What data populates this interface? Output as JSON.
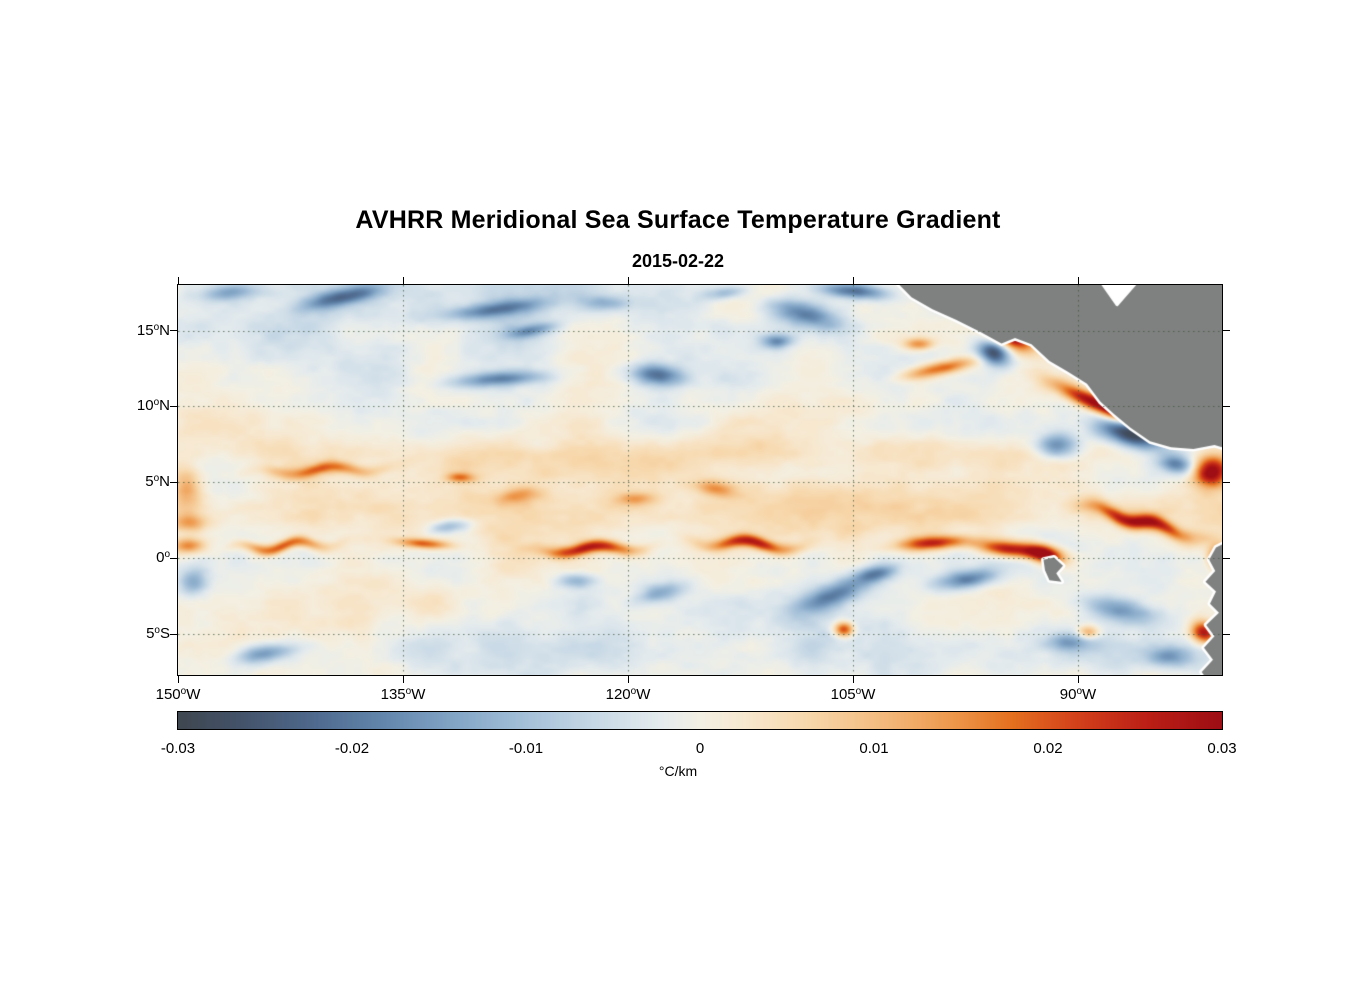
{
  "title": "AVHRR Meridional Sea Surface Temperature Gradient",
  "subtitle": "2015-02-22",
  "chart_data": {
    "type": "heatmap",
    "title": "AVHRR Meridional Sea Surface Temperature Gradient",
    "date": "2015-02-22",
    "units": "°C/km",
    "lon_range": [
      -150,
      -80.4
    ],
    "lat_range": [
      -7.7,
      18.0
    ],
    "grid": "dotted",
    "x_ticks": [
      {
        "num": "150",
        "hem": "W",
        "lon": -150
      },
      {
        "num": "135",
        "hem": "W",
        "lon": -135
      },
      {
        "num": "120",
        "hem": "W",
        "lon": -120
      },
      {
        "num": "105",
        "hem": "W",
        "lon": -105
      },
      {
        "num": "90",
        "hem": "W",
        "lon": -90
      }
    ],
    "y_ticks": [
      {
        "num": "15",
        "hem": "N",
        "lat": 15
      },
      {
        "num": "10",
        "hem": "N",
        "lat": 10
      },
      {
        "num": "5",
        "hem": "N",
        "lat": 5
      },
      {
        "num": "0",
        "hem": "",
        "lat": 0
      },
      {
        "num": "5",
        "hem": "S",
        "lat": -5
      }
    ],
    "colorbar": {
      "min": -0.03,
      "max": 0.03,
      "tick_labels": [
        "-0.03",
        "-0.02",
        "-0.01",
        "0",
        "0.01",
        "0.02",
        "0.03"
      ],
      "label": "°C/km",
      "stops": [
        [
          0.0,
          "#3f4750"
        ],
        [
          0.06,
          "#44536a"
        ],
        [
          0.13,
          "#4f6a8e"
        ],
        [
          0.2,
          "#6488ae"
        ],
        [
          0.27,
          "#86a8c8"
        ],
        [
          0.33,
          "#a3bfd8"
        ],
        [
          0.4,
          "#c8d9e6"
        ],
        [
          0.46,
          "#e4ebee"
        ],
        [
          0.5,
          "#f3f0e4"
        ],
        [
          0.54,
          "#f7e9d2"
        ],
        [
          0.6,
          "#f7d9ae"
        ],
        [
          0.67,
          "#f4bd82"
        ],
        [
          0.74,
          "#ee9a4e"
        ],
        [
          0.8,
          "#e4701f"
        ],
        [
          0.86,
          "#d4421c"
        ],
        [
          0.93,
          "#bb1f16"
        ],
        [
          1.0,
          "#9e0e14"
        ]
      ]
    },
    "land": {
      "color": "#7f8080",
      "halo": "#ffffff",
      "polygons": {
        "central_america": [
          [
            -102.3,
            18.4
          ],
          [
            -101.1,
            17.2
          ],
          [
            -99.7,
            16.4
          ],
          [
            -98.1,
            15.7
          ],
          [
            -96.5,
            14.9
          ],
          [
            -95.1,
            14.15
          ],
          [
            -94.2,
            14.5
          ],
          [
            -93.1,
            14.1
          ],
          [
            -91.9,
            13.0
          ],
          [
            -90.7,
            12.3
          ],
          [
            -89.4,
            11.5
          ],
          [
            -88.5,
            10.3
          ],
          [
            -87.6,
            9.5
          ],
          [
            -86.5,
            8.6
          ],
          [
            -85.2,
            7.7
          ],
          [
            -83.8,
            7.3
          ],
          [
            -82.3,
            7.2
          ],
          [
            -80.9,
            7.45
          ],
          [
            -80.0,
            7.2
          ],
          [
            -80.0,
            18.4
          ]
        ],
        "caribbean_gap": [
          [
            -88.6,
            18.4
          ],
          [
            -85.9,
            18.4
          ],
          [
            -87.4,
            16.7
          ]
        ],
        "galapagos": [
          [
            -92.3,
            -0.1
          ],
          [
            -91.6,
            0.05
          ],
          [
            -91.0,
            -0.5
          ],
          [
            -91.45,
            -1.0
          ],
          [
            -91.1,
            -1.55
          ],
          [
            -91.9,
            -1.45
          ],
          [
            -92.2,
            -0.8
          ]
        ],
        "south_america": [
          [
            -80.0,
            1.1
          ],
          [
            -80.8,
            0.7
          ],
          [
            -81.25,
            -0.1
          ],
          [
            -80.85,
            -0.85
          ],
          [
            -81.5,
            -1.55
          ],
          [
            -80.8,
            -2.2
          ],
          [
            -81.2,
            -3.0
          ],
          [
            -80.6,
            -3.6
          ],
          [
            -81.45,
            -4.4
          ],
          [
            -80.9,
            -5.15
          ],
          [
            -81.6,
            -5.9
          ],
          [
            -81.0,
            -6.7
          ],
          [
            -81.75,
            -7.5
          ],
          [
            -81.2,
            -8.3
          ],
          [
            -80.0,
            -8.3
          ]
        ]
      }
    },
    "field": {
      "value_units": "°C/km",
      "noise": {
        "seed": 7,
        "amp": 0.0062,
        "anisotropy": 1.7,
        "octaves": [
          [
            3.0,
            1.0
          ],
          [
            1.5,
            0.55
          ],
          [
            0.7,
            0.3
          ],
          [
            0.35,
            0.18
          ]
        ]
      },
      "feature_format": "[lon, lat, sigma_lon_deg, sigma_lat_deg, rotation_deg, peak_value, waveAmp?, waveLen?, wavePhase?]",
      "features": [
        [
          -115,
          3.2,
          40,
          1.8,
          0,
          0.005
        ],
        [
          -115,
          6.8,
          40,
          1.2,
          0,
          0.0035
        ],
        [
          -132,
          15.5,
          20,
          3.5,
          0,
          -0.004
        ],
        [
          -120,
          -6.3,
          30,
          2.2,
          0,
          -0.003
        ],
        [
          -149.3,
          0.8,
          1.2,
          0.5,
          0,
          0.016
        ],
        [
          -143,
          0.8,
          2.8,
          0.38,
          3,
          0.021,
          0.25,
          4,
          0
        ],
        [
          -133.6,
          0.95,
          1.8,
          0.32,
          -4,
          0.019
        ],
        [
          -122.4,
          0.6,
          3,
          0.42,
          2,
          0.027,
          0.2,
          5,
          1
        ],
        [
          -111.8,
          0.9,
          2.8,
          0.42,
          -3,
          0.025,
          0.25,
          5,
          2
        ],
        [
          -99.6,
          1,
          2.4,
          0.45,
          4,
          0.024
        ],
        [
          -94.6,
          0.6,
          2.2,
          0.5,
          -6,
          0.028
        ],
        [
          -92.2,
          0.25,
          1.3,
          0.6,
          -15,
          0.032
        ],
        [
          -85.8,
          2.4,
          3.2,
          0.5,
          -16,
          0.029,
          0.2,
          4,
          0
        ],
        [
          -81.1,
          5.7,
          1.2,
          1,
          10,
          0.034
        ],
        [
          -81.6,
          -4.9,
          0.9,
          0.7,
          -20,
          0.028
        ],
        [
          -80.7,
          0.1,
          0.6,
          0.7,
          0,
          0.024
        ],
        [
          -105.6,
          -4.7,
          0.65,
          0.5,
          0,
          0.026
        ],
        [
          -140.2,
          5.8,
          3.5,
          0.4,
          2,
          0.016,
          0.2,
          5,
          1
        ],
        [
          -131.2,
          5.3,
          0.9,
          0.32,
          0,
          0.014
        ],
        [
          -127.4,
          4.1,
          1.5,
          0.5,
          10,
          0.011
        ],
        [
          -119.5,
          3.9,
          1.2,
          0.4,
          0,
          0.01
        ],
        [
          -114.2,
          4.6,
          1.3,
          0.5,
          -8,
          0.012
        ],
        [
          -149.4,
          4.6,
          1,
          1.4,
          0,
          0.013
        ],
        [
          -149.2,
          2.3,
          1.2,
          0.6,
          0,
          0.012
        ],
        [
          -89.3,
          -4.9,
          0.7,
          0.45,
          0,
          0.015
        ],
        [
          -99.2,
          12.5,
          2.4,
          0.45,
          12,
          0.02
        ],
        [
          -94.4,
          14.6,
          1.5,
          0.75,
          -25,
          0.033
        ],
        [
          -100.6,
          14.1,
          1,
          0.4,
          0,
          0.016
        ],
        [
          -95.6,
          13.5,
          1.1,
          0.75,
          -20,
          -0.028
        ],
        [
          -89,
          10.3,
          2.6,
          0.55,
          -24,
          0.032
        ],
        [
          -87,
          9.9,
          1.1,
          0.7,
          -20,
          0.026
        ],
        [
          -86.4,
          8.2,
          2.2,
          0.85,
          -14,
          -0.031
        ],
        [
          -91.5,
          7.4,
          1.4,
          0.8,
          0,
          -0.02
        ],
        [
          -83.4,
          6.2,
          1.2,
          0.6,
          -10,
          -0.018
        ],
        [
          -139,
          17.2,
          2.6,
          0.55,
          12,
          -0.018
        ],
        [
          -146.5,
          17.5,
          1.8,
          0.5,
          5,
          -0.012
        ],
        [
          -128.8,
          16.4,
          3.3,
          0.5,
          7,
          -0.016
        ],
        [
          -126.5,
          15,
          1.6,
          0.4,
          10,
          -0.013
        ],
        [
          -128.7,
          11.8,
          3,
          0.5,
          4,
          -0.018
        ],
        [
          -121.5,
          16.8,
          1.6,
          0.5,
          0,
          -0.01
        ],
        [
          -118.1,
          12.1,
          1.7,
          0.65,
          -5,
          -0.016
        ],
        [
          -113.5,
          17.5,
          1.5,
          0.45,
          8,
          -0.011
        ],
        [
          -110.1,
          14.3,
          1,
          0.45,
          0,
          -0.015
        ],
        [
          -108.2,
          16.1,
          2.4,
          0.8,
          -12,
          -0.018
        ],
        [
          -104.9,
          17.6,
          2.2,
          0.5,
          -5,
          -0.02
        ],
        [
          -97.5,
          16.4,
          2.4,
          0.5,
          -8,
          -0.013
        ],
        [
          -131.8,
          2.1,
          1.4,
          0.45,
          8,
          -0.012
        ],
        [
          -106.2,
          -2.4,
          2.8,
          0.8,
          22,
          -0.018
        ],
        [
          -103.4,
          -1,
          1.4,
          0.5,
          10,
          -0.015
        ],
        [
          -97.4,
          -1.4,
          2,
          0.6,
          8,
          -0.018
        ],
        [
          -87.2,
          -3.4,
          2.4,
          0.8,
          -12,
          -0.016
        ],
        [
          -144.3,
          -6.3,
          2,
          0.6,
          8,
          -0.016
        ],
        [
          -149,
          -1.6,
          1,
          0.9,
          0,
          -0.013
        ],
        [
          -90.5,
          -5.5,
          1.5,
          0.6,
          0,
          -0.012
        ],
        [
          -84,
          -6.5,
          1.5,
          0.7,
          0,
          -0.013
        ],
        [
          -117.8,
          -2.3,
          1.6,
          0.6,
          15,
          -0.012
        ],
        [
          -123.5,
          -1.5,
          1.3,
          0.5,
          0,
          -0.011
        ]
      ]
    }
  }
}
